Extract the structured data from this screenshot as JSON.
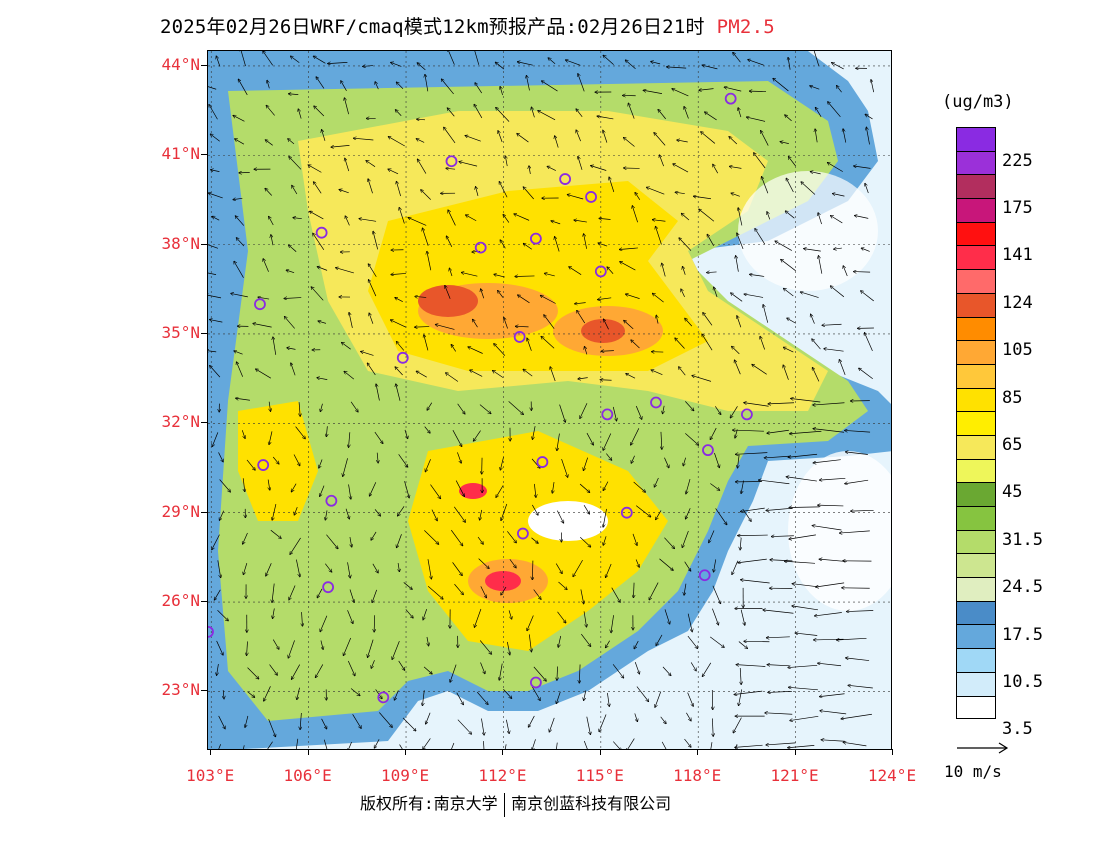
{
  "title": {
    "main": "2025年02月26日WRF/cmaq模式12km预报产品:02月26日21时",
    "pollutant": "PM2.5"
  },
  "map": {
    "lat_labels": [
      "44°N",
      "41°N",
      "38°N",
      "35°N",
      "32°N",
      "29°N",
      "26°N",
      "23°N"
    ],
    "lon_labels": [
      "103°E",
      "106°E",
      "109°E",
      "112°E",
      "115°E",
      "118°E",
      "121°E",
      "124°E"
    ],
    "lat_range": [
      21,
      44.5
    ],
    "lon_range": [
      102.9,
      124
    ],
    "stations": [
      {
        "lon": 119.0,
        "lat": 42.9
      },
      {
        "lon": 110.4,
        "lat": 40.8
      },
      {
        "lon": 113.9,
        "lat": 40.2
      },
      {
        "lon": 114.7,
        "lat": 39.6
      },
      {
        "lon": 106.4,
        "lat": 38.4
      },
      {
        "lon": 111.3,
        "lat": 37.9
      },
      {
        "lon": 113.0,
        "lat": 38.2
      },
      {
        "lon": 115.0,
        "lat": 37.1
      },
      {
        "lon": 104.5,
        "lat": 36.0
      },
      {
        "lon": 112.5,
        "lat": 34.9
      },
      {
        "lon": 108.9,
        "lat": 34.2
      },
      {
        "lon": 115.2,
        "lat": 32.3
      },
      {
        "lon": 116.7,
        "lat": 32.7
      },
      {
        "lon": 119.5,
        "lat": 32.3
      },
      {
        "lon": 118.3,
        "lat": 31.1
      },
      {
        "lon": 104.6,
        "lat": 30.6
      },
      {
        "lon": 113.2,
        "lat": 30.7
      },
      {
        "lon": 106.7,
        "lat": 29.4
      },
      {
        "lon": 115.8,
        "lat": 29.0
      },
      {
        "lon": 112.6,
        "lat": 28.3
      },
      {
        "lon": 118.2,
        "lat": 26.9
      },
      {
        "lon": 106.6,
        "lat": 26.5
      },
      {
        "lon": 102.9,
        "lat": 25.0
      },
      {
        "lon": 113.0,
        "lat": 23.3
      },
      {
        "lon": 108.3,
        "lat": 22.8
      }
    ]
  },
  "legend": {
    "unit": "(ug/m3)",
    "colors": [
      "#8a2be2",
      "#9b30d9",
      "#b22e5e",
      "#c8167a",
      "#ff1010",
      "#ff2d4a",
      "#ff6a6a",
      "#e8562a",
      "#ff8c00",
      "#ffa834",
      "#ffc83a",
      "#ffe100",
      "#ffee00",
      "#f6e85a",
      "#eef65a",
      "#6aa832",
      "#86c440",
      "#b4dc6a",
      "#cde690",
      "#e0eec0",
      "#4a8cc8",
      "#64a8dc",
      "#a0d8f6",
      "#d2ecfa",
      "#ffffff"
    ],
    "labels": [
      "225",
      "175",
      "141",
      "124",
      "105",
      "85",
      "65",
      "45",
      "31.5",
      "24.5",
      "17.5",
      "10.5",
      "3.5"
    ],
    "reference_vector": "10 m/s"
  },
  "footer": {
    "copyright_a": "版权所有:南京大学",
    "copyright_b": "南京创蓝科技有限公司"
  }
}
